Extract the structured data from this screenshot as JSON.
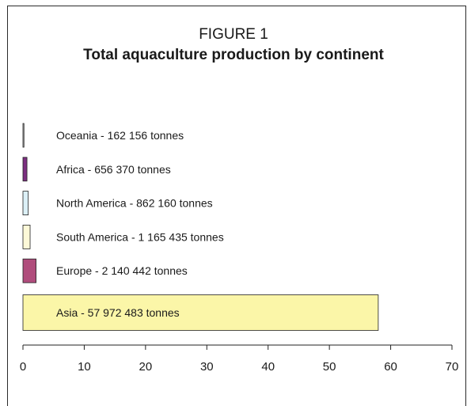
{
  "figure": {
    "label": "FIGURE 1",
    "title": "Total aquaculture production by continent"
  },
  "chart_data": {
    "type": "bar",
    "orientation": "horizontal",
    "title": "Total aquaculture production by continent",
    "categories": [
      "Asia",
      "Europe",
      "South America",
      "North America",
      "Africa",
      "Oceania"
    ],
    "values": [
      57.972483,
      2.140442,
      1.165435,
      0.86216,
      0.65637,
      0.162156
    ],
    "labels": [
      "Asia - 57 972 483 tonnes",
      "Europe - 2 140 442 tonnes",
      "South America - 1 165 435 tonnes",
      "North America - 862 160 tonnes",
      "Africa - 656 370 tonnes",
      "Oceania - 162 156 tonnes"
    ],
    "colors": [
      "#fbf6a8",
      "#b04d7c",
      "#fdf9d8",
      "#dcf0f7",
      "#7c2f80",
      "#c6c6c6"
    ],
    "xlim": [
      0,
      70
    ],
    "xticks": [
      0,
      10,
      20,
      30,
      40,
      50,
      60,
      70
    ],
    "grid": false,
    "legend": "none"
  }
}
